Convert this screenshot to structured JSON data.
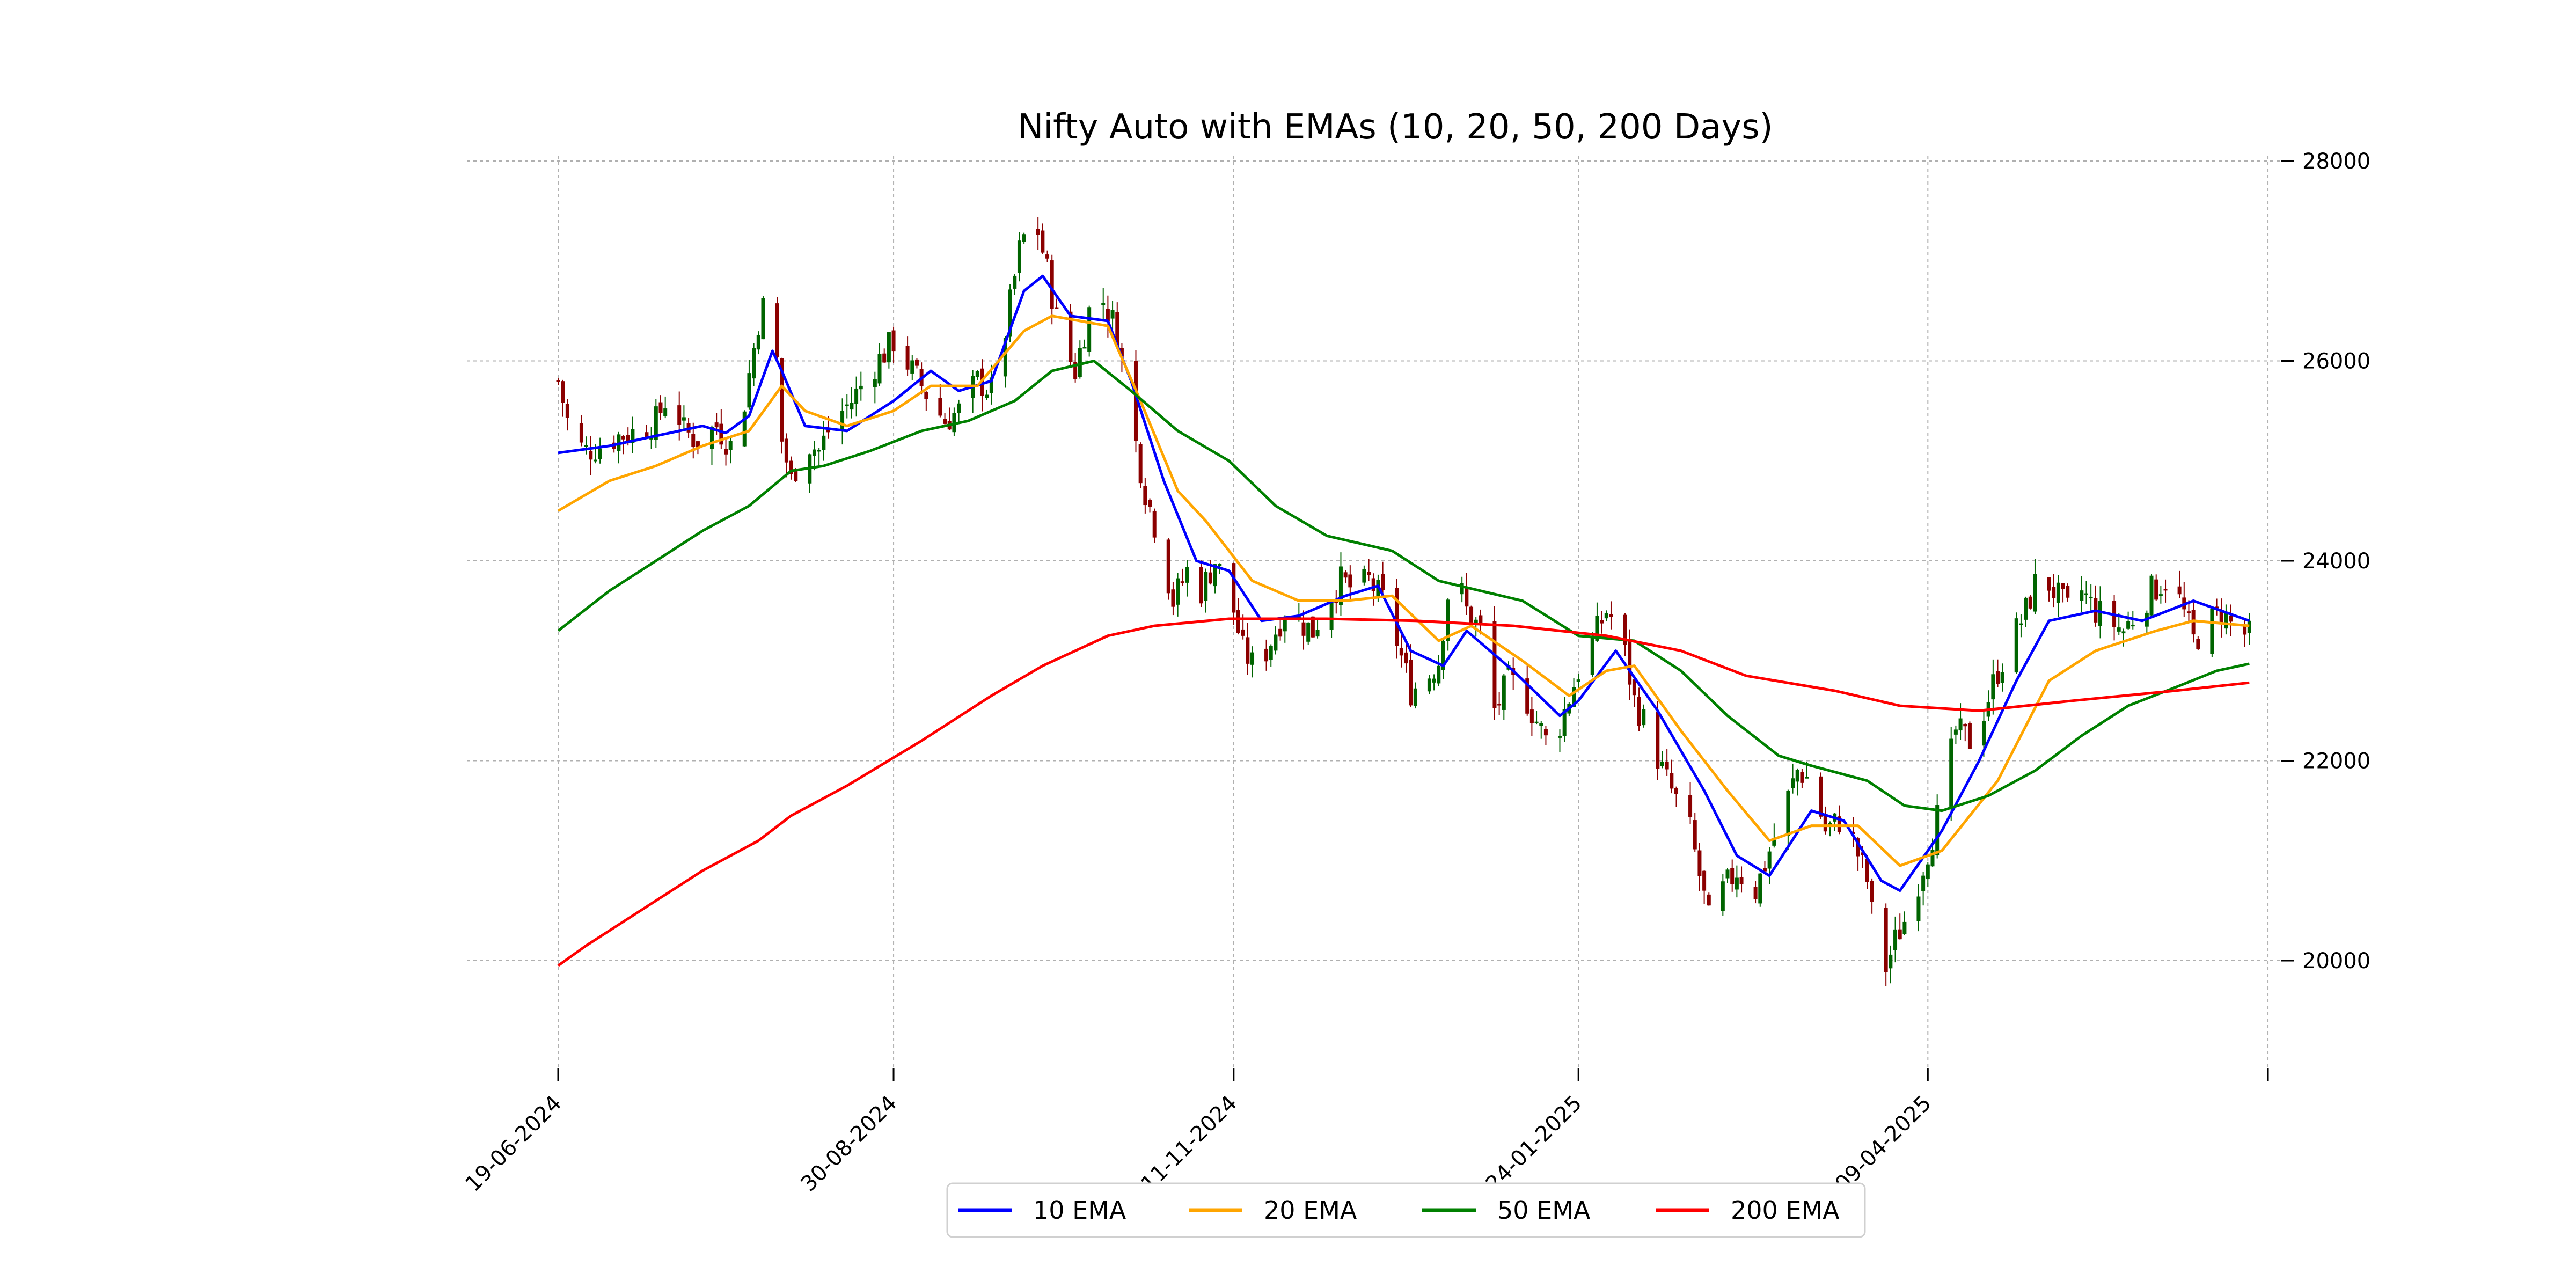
{
  "chart_data": {
    "type": "candlestick",
    "title": "Nifty Auto with EMAs (10, 20, 50, 200 Days)",
    "xlabel": "",
    "ylabel": "",
    "x_range": [
      "2024-06-19",
      "2025-06-18"
    ],
    "ylim": [
      18800,
      28200
    ],
    "y_ticks": [
      20000,
      22000,
      24000,
      26000,
      28000
    ],
    "y_axis_side": "right",
    "x_ticks": [
      {
        "date": "2024-06-19",
        "label": "19-06-2024"
      },
      {
        "date": "2024-08-30",
        "label": "30-08-2024"
      },
      {
        "date": "2024-11-11",
        "label": "11-11-2024"
      },
      {
        "date": "2025-01-24",
        "label": "24-01-2025"
      },
      {
        "date": "2025-04-09",
        "label": "09-04-2025"
      },
      {
        "date": "2025-06-21",
        "label": ""
      }
    ],
    "grid": true,
    "legend_position": "bottom-center",
    "candle_colors": {
      "up": "#006400",
      "down": "#8b0000"
    },
    "price_series": [
      [
        "2024-06-19",
        25800
      ],
      [
        "2024-06-22",
        25200
      ],
      [
        "2024-06-25",
        25100
      ],
      [
        "2024-06-28",
        25150
      ],
      [
        "2024-07-02",
        25250
      ],
      [
        "2024-07-06",
        25300
      ],
      [
        "2024-07-10",
        25400
      ],
      [
        "2024-07-13",
        25700
      ],
      [
        "2024-07-16",
        25300
      ],
      [
        "2024-07-19",
        25200
      ],
      [
        "2024-07-23",
        25350
      ],
      [
        "2024-07-26",
        25150
      ],
      [
        "2024-07-29",
        25600
      ],
      [
        "2024-08-01",
        26400
      ],
      [
        "2024-08-04",
        26800
      ],
      [
        "2024-08-06",
        25200
      ],
      [
        "2024-08-08",
        24800
      ],
      [
        "2024-08-11",
        25200
      ],
      [
        "2024-08-14",
        25100
      ],
      [
        "2024-08-17",
        25400
      ],
      [
        "2024-08-21",
        25600
      ],
      [
        "2024-08-25",
        25900
      ],
      [
        "2024-08-30",
        26200
      ],
      [
        "2024-09-03",
        25900
      ],
      [
        "2024-09-07",
        25600
      ],
      [
        "2024-09-10",
        25400
      ],
      [
        "2024-09-13",
        25500
      ],
      [
        "2024-09-17",
        25800
      ],
      [
        "2024-09-20",
        25700
      ],
      [
        "2024-09-23",
        26300
      ],
      [
        "2024-09-26",
        27100
      ],
      [
        "2024-09-29",
        27500
      ],
      [
        "2024-10-02",
        26900
      ],
      [
        "2024-10-05",
        26200
      ],
      [
        "2024-10-08",
        25900
      ],
      [
        "2024-10-11",
        26500
      ],
      [
        "2024-10-14",
        26600
      ],
      [
        "2024-10-17",
        26300
      ],
      [
        "2024-10-20",
        25400
      ],
      [
        "2024-10-23",
        24700
      ],
      [
        "2024-10-26",
        24200
      ],
      [
        "2024-10-29",
        23600
      ],
      [
        "2024-11-01",
        23900
      ],
      [
        "2024-11-04",
        23700
      ],
      [
        "2024-11-07",
        24000
      ],
      [
        "2024-11-10",
        23700
      ],
      [
        "2024-11-13",
        23100
      ],
      [
        "2024-11-16",
        22900
      ],
      [
        "2024-11-19",
        23200
      ],
      [
        "2024-11-22",
        23500
      ],
      [
        "2024-11-25",
        23400
      ],
      [
        "2024-11-28",
        23300
      ],
      [
        "2024-12-01",
        23600
      ],
      [
        "2024-12-04",
        23800
      ],
      [
        "2024-12-07",
        23700
      ],
      [
        "2024-12-10",
        23800
      ],
      [
        "2024-12-13",
        23600
      ],
      [
        "2024-12-16",
        23200
      ],
      [
        "2024-12-19",
        22700
      ],
      [
        "2024-12-22",
        22800
      ],
      [
        "2024-12-25",
        23000
      ],
      [
        "2024-12-28",
        24000
      ],
      [
        "2024-12-31",
        23500
      ],
      [
        "2025-01-03",
        23300
      ],
      [
        "2025-01-06",
        22500
      ],
      [
        "2025-01-09",
        22800
      ],
      [
        "2025-01-12",
        22700
      ],
      [
        "2025-01-15",
        22400
      ],
      [
        "2025-01-18",
        22100
      ],
      [
        "2025-01-21",
        22500
      ],
      [
        "2025-01-24",
        22900
      ],
      [
        "2025-01-27",
        23200
      ],
      [
        "2025-01-30",
        23500
      ],
      [
        "2025-02-02",
        23300
      ],
      [
        "2025-02-05",
        22600
      ],
      [
        "2025-02-08",
        22300
      ],
      [
        "2025-02-11",
        21900
      ],
      [
        "2025-02-14",
        21600
      ],
      [
        "2025-02-17",
        21300
      ],
      [
        "2025-02-21",
        20400
      ],
      [
        "2025-02-24",
        20700
      ],
      [
        "2025-02-27",
        20900
      ],
      [
        "2025-03-03",
        20700
      ],
      [
        "2025-03-06",
        21100
      ],
      [
        "2025-03-09",
        21500
      ],
      [
        "2025-03-12",
        21900
      ],
      [
        "2025-03-15",
        21800
      ],
      [
        "2025-03-18",
        21300
      ],
      [
        "2025-03-21",
        21400
      ],
      [
        "2025-03-24",
        21200
      ],
      [
        "2025-03-27",
        20800
      ],
      [
        "2025-03-30",
        19800
      ],
      [
        "2025-04-02",
        20200
      ],
      [
        "2025-04-05",
        20500
      ],
      [
        "2025-04-09",
        21100
      ],
      [
        "2025-04-12",
        21600
      ],
      [
        "2025-04-15",
        22300
      ],
      [
        "2025-04-18",
        22200
      ],
      [
        "2025-04-21",
        22500
      ],
      [
        "2025-04-24",
        22900
      ],
      [
        "2025-04-27",
        23200
      ],
      [
        "2025-04-30",
        23500
      ],
      [
        "2025-05-03",
        23900
      ],
      [
        "2025-05-06",
        23700
      ],
      [
        "2025-05-09",
        23500
      ],
      [
        "2025-05-12",
        23700
      ],
      [
        "2025-05-15",
        23500
      ],
      [
        "2025-05-18",
        23400
      ],
      [
        "2025-05-21",
        23300
      ],
      [
        "2025-05-24",
        23500
      ],
      [
        "2025-05-27",
        23700
      ],
      [
        "2025-05-30",
        23800
      ],
      [
        "2025-06-02",
        23600
      ],
      [
        "2025-06-05",
        23200
      ],
      [
        "2025-06-08",
        23350
      ],
      [
        "2025-06-11",
        23500
      ],
      [
        "2025-06-14",
        23300
      ],
      [
        "2025-06-17",
        23250
      ]
    ],
    "series": [
      {
        "name": "10 EMA",
        "color": "#0000ff",
        "points": [
          [
            "2024-06-19",
            25080
          ],
          [
            "2024-06-30",
            25150
          ],
          [
            "2024-07-10",
            25250
          ],
          [
            "2024-07-20",
            25350
          ],
          [
            "2024-07-25",
            25280
          ],
          [
            "2024-07-30",
            25450
          ],
          [
            "2024-08-04",
            26100
          ],
          [
            "2024-08-06",
            25900
          ],
          [
            "2024-08-11",
            25350
          ],
          [
            "2024-08-20",
            25300
          ],
          [
            "2024-08-30",
            25600
          ],
          [
            "2024-09-07",
            25900
          ],
          [
            "2024-09-13",
            25700
          ],
          [
            "2024-09-20",
            25800
          ],
          [
            "2024-09-27",
            26700
          ],
          [
            "2024-10-01",
            26850
          ],
          [
            "2024-10-07",
            26450
          ],
          [
            "2024-10-15",
            26400
          ],
          [
            "2024-10-20",
            25800
          ],
          [
            "2024-10-27",
            24800
          ],
          [
            "2024-11-03",
            24000
          ],
          [
            "2024-11-10",
            23900
          ],
          [
            "2024-11-17",
            23400
          ],
          [
            "2024-11-25",
            23450
          ],
          [
            "2024-12-05",
            23650
          ],
          [
            "2024-12-12",
            23750
          ],
          [
            "2024-12-19",
            23100
          ],
          [
            "2024-12-26",
            22950
          ],
          [
            "2024-12-31",
            23300
          ],
          [
            "2025-01-10",
            22900
          ],
          [
            "2025-01-20",
            22450
          ],
          [
            "2025-01-24",
            22600
          ],
          [
            "2025-02-01",
            23100
          ],
          [
            "2025-02-10",
            22500
          ],
          [
            "2025-02-20",
            21700
          ],
          [
            "2025-02-27",
            21050
          ],
          [
            "2025-03-06",
            20850
          ],
          [
            "2025-03-15",
            21500
          ],
          [
            "2025-03-22",
            21400
          ],
          [
            "2025-03-30",
            20800
          ],
          [
            "2025-04-03",
            20700
          ],
          [
            "2025-04-12",
            21300
          ],
          [
            "2025-04-20",
            22000
          ],
          [
            "2025-04-28",
            22800
          ],
          [
            "2025-05-05",
            23400
          ],
          [
            "2025-05-15",
            23500
          ],
          [
            "2025-05-25",
            23400
          ],
          [
            "2025-06-05",
            23600
          ],
          [
            "2025-06-17",
            23400
          ]
        ]
      },
      {
        "name": "20 EMA",
        "color": "#ffa500",
        "points": [
          [
            "2024-06-19",
            24500
          ],
          [
            "2024-06-30",
            24800
          ],
          [
            "2024-07-10",
            24950
          ],
          [
            "2024-07-20",
            25150
          ],
          [
            "2024-07-30",
            25300
          ],
          [
            "2024-08-06",
            25750
          ],
          [
            "2024-08-11",
            25500
          ],
          [
            "2024-08-20",
            25350
          ],
          [
            "2024-08-30",
            25500
          ],
          [
            "2024-09-07",
            25750
          ],
          [
            "2024-09-17",
            25750
          ],
          [
            "2024-09-27",
            26300
          ],
          [
            "2024-10-03",
            26450
          ],
          [
            "2024-10-15",
            26350
          ],
          [
            "2024-10-22",
            25600
          ],
          [
            "2024-10-30",
            24700
          ],
          [
            "2024-11-05",
            24400
          ],
          [
            "2024-11-15",
            23800
          ],
          [
            "2024-11-25",
            23600
          ],
          [
            "2024-12-05",
            23600
          ],
          [
            "2024-12-15",
            23650
          ],
          [
            "2024-12-25",
            23200
          ],
          [
            "2025-01-01",
            23350
          ],
          [
            "2025-01-12",
            23000
          ],
          [
            "2025-01-22",
            22650
          ],
          [
            "2025-01-30",
            22900
          ],
          [
            "2025-02-05",
            22950
          ],
          [
            "2025-02-15",
            22300
          ],
          [
            "2025-02-25",
            21700
          ],
          [
            "2025-03-06",
            21200
          ],
          [
            "2025-03-15",
            21350
          ],
          [
            "2025-03-25",
            21350
          ],
          [
            "2025-04-03",
            20950
          ],
          [
            "2025-04-12",
            21100
          ],
          [
            "2025-04-24",
            21800
          ],
          [
            "2025-05-05",
            22800
          ],
          [
            "2025-05-15",
            23100
          ],
          [
            "2025-05-28",
            23300
          ],
          [
            "2025-06-05",
            23400
          ],
          [
            "2025-06-17",
            23350
          ]
        ]
      },
      {
        "name": "50 EMA",
        "color": "#008000",
        "points": [
          [
            "2024-06-19",
            23300
          ],
          [
            "2024-06-30",
            23700
          ],
          [
            "2024-07-10",
            24000
          ],
          [
            "2024-07-20",
            24300
          ],
          [
            "2024-07-30",
            24550
          ],
          [
            "2024-08-08",
            24900
          ],
          [
            "2024-08-15",
            24950
          ],
          [
            "2024-08-25",
            25100
          ],
          [
            "2024-09-05",
            25300
          ],
          [
            "2024-09-15",
            25400
          ],
          [
            "2024-09-25",
            25600
          ],
          [
            "2024-10-03",
            25900
          ],
          [
            "2024-10-12",
            26000
          ],
          [
            "2024-10-20",
            25700
          ],
          [
            "2024-10-30",
            25300
          ],
          [
            "2024-11-10",
            25000
          ],
          [
            "2024-11-20",
            24550
          ],
          [
            "2024-12-01",
            24250
          ],
          [
            "2024-12-15",
            24100
          ],
          [
            "2024-12-25",
            23800
          ],
          [
            "2025-01-03",
            23700
          ],
          [
            "2025-01-12",
            23600
          ],
          [
            "2025-01-24",
            23250
          ],
          [
            "2025-02-05",
            23200
          ],
          [
            "2025-02-15",
            22900
          ],
          [
            "2025-02-25",
            22450
          ],
          [
            "2025-03-08",
            22050
          ],
          [
            "2025-03-15",
            21950
          ],
          [
            "2025-03-27",
            21800
          ],
          [
            "2025-04-04",
            21550
          ],
          [
            "2025-04-12",
            21500
          ],
          [
            "2025-04-22",
            21650
          ],
          [
            "2025-05-02",
            21900
          ],
          [
            "2025-05-12",
            22250
          ],
          [
            "2025-05-22",
            22550
          ],
          [
            "2025-06-02",
            22750
          ],
          [
            "2025-06-10",
            22900
          ],
          [
            "2025-06-17",
            22970
          ]
        ]
      },
      {
        "name": "200 EMA",
        "color": "#ff0000",
        "points": [
          [
            "2024-06-19",
            19950
          ],
          [
            "2024-06-25",
            20150
          ],
          [
            "2024-07-05",
            20450
          ],
          [
            "2024-07-20",
            20900
          ],
          [
            "2024-08-01",
            21200
          ],
          [
            "2024-08-08",
            21450
          ],
          [
            "2024-08-20",
            21750
          ],
          [
            "2024-09-05",
            22200
          ],
          [
            "2024-09-20",
            22650
          ],
          [
            "2024-10-01",
            22950
          ],
          [
            "2024-10-15",
            23250
          ],
          [
            "2024-10-25",
            23350
          ],
          [
            "2024-11-10",
            23420
          ],
          [
            "2024-12-01",
            23420
          ],
          [
            "2024-12-20",
            23400
          ],
          [
            "2025-01-10",
            23350
          ],
          [
            "2025-01-30",
            23250
          ],
          [
            "2025-02-15",
            23100
          ],
          [
            "2025-03-01",
            22850
          ],
          [
            "2025-03-20",
            22700
          ],
          [
            "2025-04-03",
            22550
          ],
          [
            "2025-04-20",
            22500
          ],
          [
            "2025-05-10",
            22600
          ],
          [
            "2025-06-01",
            22700
          ],
          [
            "2025-06-17",
            22780
          ]
        ]
      }
    ]
  }
}
